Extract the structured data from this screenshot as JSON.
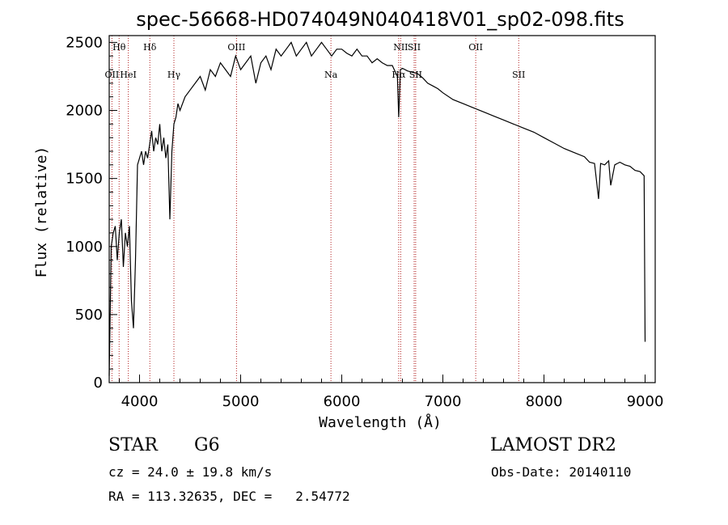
{
  "chart_data": {
    "type": "line",
    "title": "spec-56668-HD074049N040418V01_sp02-098.fits",
    "xlabel": "Wavelength (Å)",
    "ylabel": "Flux (relative)",
    "xlim": [
      3700,
      9100
    ],
    "ylim": [
      0,
      2550
    ],
    "x_ticks": [
      "4000",
      "5000",
      "6000",
      "7000",
      "8000",
      "9000"
    ],
    "y_ticks": [
      "0",
      "500",
      "1000",
      "1500",
      "2000",
      "2500"
    ],
    "spectral_lines": [
      {
        "label": "OII",
        "wavelength": 3727
      },
      {
        "label": "Hθ",
        "wavelength": 3798
      },
      {
        "label": "HeI",
        "wavelength": 3889
      },
      {
        "label": "Hδ",
        "wavelength": 4102
      },
      {
        "label": "Hγ",
        "wavelength": 4340
      },
      {
        "label": "OIII",
        "wavelength": 4959
      },
      {
        "label": "Na",
        "wavelength": 5893
      },
      {
        "label": "NII",
        "wavelength": 6583
      },
      {
        "label": "Hα",
        "wavelength": 6563
      },
      {
        "label": "SII",
        "wavelength": 6716
      },
      {
        "label": "SII",
        "wavelength": 6731
      },
      {
        "label": "OII",
        "wavelength": 7325
      },
      {
        "label": "SII",
        "wavelength": 7750
      }
    ],
    "series": [
      {
        "x": [
          3700,
          3720,
          3740,
          3760,
          3780,
          3800,
          3820,
          3840,
          3860,
          3880,
          3900,
          3920,
          3940,
          3960,
          3980,
          4000,
          4020,
          4040,
          4060,
          4080,
          4100,
          4120,
          4140,
          4160,
          4180,
          4200,
          4220,
          4240,
          4260,
          4280,
          4300,
          4320,
          4340,
          4360,
          4380,
          4400,
          4450,
          4500,
          4550,
          4600,
          4650,
          4700,
          4750,
          4800,
          4850,
          4900,
          4950,
          5000,
          5050,
          5100,
          5150,
          5200,
          5250,
          5300,
          5350,
          5400,
          5450,
          5500,
          5550,
          5600,
          5650,
          5700,
          5750,
          5800,
          5850,
          5900,
          5950,
          6000,
          6050,
          6100,
          6150,
          6200,
          6250,
          6300,
          6350,
          6400,
          6450,
          6500,
          6550,
          6563,
          6580,
          6600,
          6650,
          6700,
          6750,
          6800,
          6850,
          6900,
          6950,
          7000,
          7100,
          7200,
          7300,
          7400,
          7500,
          7600,
          7700,
          7800,
          7900,
          8000,
          8100,
          8200,
          8300,
          8400,
          8450,
          8500,
          8540,
          8560,
          8600,
          8640,
          8660,
          8700,
          8750,
          8800,
          8850,
          8900,
          8950,
          8990,
          9000
        ],
        "y": [
          50,
          1000,
          1100,
          1150,
          900,
          1100,
          1200,
          850,
          1100,
          1000,
          1150,
          600,
          400,
          900,
          1600,
          1650,
          1700,
          1600,
          1700,
          1650,
          1750,
          1850,
          1700,
          1800,
          1750,
          1900,
          1700,
          1800,
          1650,
          1750,
          1200,
          1700,
          1900,
          1950,
          2050,
          2000,
          2100,
          2150,
          2200,
          2250,
          2150,
          2300,
          2250,
          2350,
          2300,
          2250,
          2400,
          2300,
          2350,
          2400,
          2200,
          2350,
          2400,
          2300,
          2450,
          2400,
          2450,
          2500,
          2400,
          2450,
          2500,
          2400,
          2450,
          2500,
          2450,
          2400,
          2450,
          2450,
          2420,
          2400,
          2450,
          2400,
          2400,
          2350,
          2380,
          2350,
          2330,
          2330,
          2250,
          1950,
          2300,
          2310,
          2290,
          2280,
          2270,
          2240,
          2200,
          2180,
          2160,
          2130,
          2080,
          2050,
          2020,
          1990,
          1960,
          1930,
          1900,
          1870,
          1840,
          1800,
          1760,
          1720,
          1690,
          1660,
          1620,
          1610,
          1350,
          1610,
          1600,
          1630,
          1450,
          1600,
          1620,
          1600,
          1590,
          1560,
          1550,
          1520,
          300
        ]
      }
    ]
  },
  "info": {
    "class_label": "STAR",
    "subclass_label": "G6",
    "survey_label": "LAMOST DR2",
    "cz_text": "cz = 24.0 ± 19.8 km/s",
    "obs_date_text": "Obs-Date: 20140110",
    "coords_text": "RA = 113.32635, DEC =   2.54772"
  }
}
